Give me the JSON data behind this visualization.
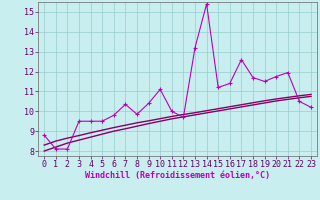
{
  "xlabel": "Windchill (Refroidissement éolien,°C)",
  "x": [
    0,
    1,
    2,
    3,
    4,
    5,
    6,
    7,
    8,
    9,
    10,
    11,
    12,
    13,
    14,
    15,
    16,
    17,
    18,
    19,
    20,
    21,
    22,
    23
  ],
  "y_data": [
    8.8,
    8.1,
    8.1,
    9.5,
    9.5,
    9.5,
    9.8,
    10.35,
    9.85,
    10.4,
    11.1,
    10.0,
    9.7,
    13.2,
    15.4,
    11.2,
    11.4,
    12.6,
    11.7,
    11.5,
    11.75,
    11.95,
    10.5,
    10.2
  ],
  "y_line1": [
    8.0,
    8.2,
    8.4,
    8.55,
    8.7,
    8.85,
    9.0,
    9.12,
    9.25,
    9.38,
    9.5,
    9.62,
    9.72,
    9.82,
    9.92,
    10.02,
    10.12,
    10.22,
    10.32,
    10.42,
    10.52,
    10.6,
    10.68,
    10.75
  ],
  "y_line2": [
    8.3,
    8.5,
    8.65,
    8.78,
    8.92,
    9.05,
    9.18,
    9.3,
    9.42,
    9.52,
    9.63,
    9.74,
    9.84,
    9.93,
    10.03,
    10.13,
    10.23,
    10.33,
    10.43,
    10.53,
    10.62,
    10.7,
    10.78,
    10.85
  ],
  "color_data": "#bb00bb",
  "color_line1": "#880066",
  "color_line2": "#880066",
  "bg_color": "#c8eef0",
  "grid_color": "#99cccc",
  "ylim": [
    7.75,
    15.5
  ],
  "yticks": [
    8,
    9,
    10,
    11,
    12,
    13,
    14,
    15
  ],
  "tick_fontsize": 6,
  "xlabel_fontsize": 6,
  "marker": "+"
}
